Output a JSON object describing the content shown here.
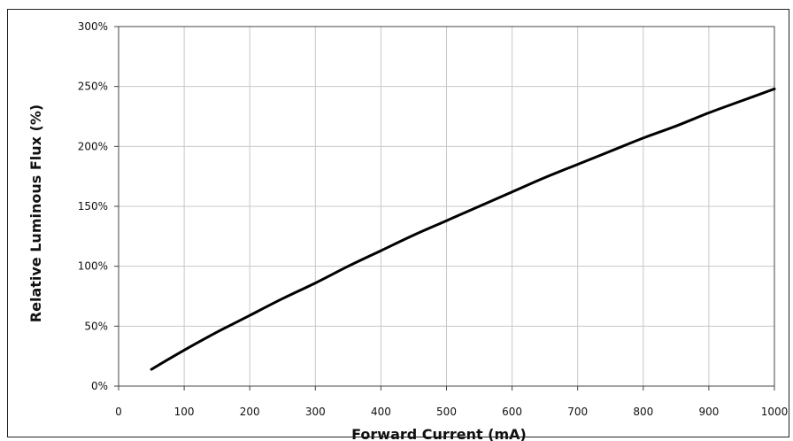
{
  "chart_data": {
    "type": "line",
    "title": "",
    "xlabel": "Forward Current (mA)",
    "ylabel": "Relative Luminous Flux (%)",
    "xlim": [
      0,
      1000
    ],
    "ylim": [
      0,
      300
    ],
    "x_ticks": [
      0,
      100,
      200,
      300,
      400,
      500,
      600,
      700,
      800,
      900,
      1000
    ],
    "y_ticks": [
      0,
      50,
      100,
      150,
      200,
      250,
      300
    ],
    "x_tick_labels": [
      "0",
      "100",
      "200",
      "300",
      "400",
      "500",
      "600",
      "700",
      "800",
      "900",
      "1000"
    ],
    "y_tick_labels": [
      "0%",
      "50%",
      "100%",
      "150%",
      "200%",
      "250%",
      "300%"
    ],
    "grid": true,
    "legend": "none",
    "line_color": "#000000",
    "grid_color": "#c8c8c8",
    "series": [
      {
        "x": [
          50,
          100,
          150,
          200,
          250,
          300,
          350,
          400,
          450,
          500,
          550,
          600,
          650,
          700,
          750,
          800,
          850,
          900,
          950,
          1000
        ],
        "values": [
          14,
          30,
          45,
          59,
          73,
          86,
          100,
          113,
          126,
          138,
          150,
          162,
          174,
          185,
          196,
          207,
          217,
          228,
          238,
          248
        ]
      }
    ]
  }
}
